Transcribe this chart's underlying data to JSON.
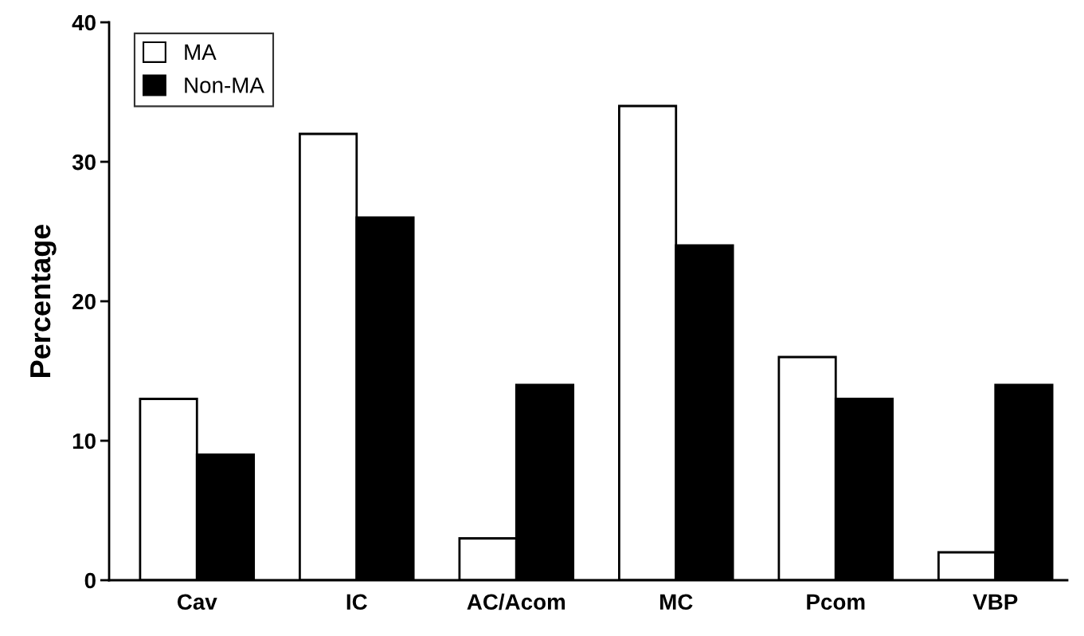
{
  "chart_data": {
    "type": "bar",
    "ylabel": "Percentage",
    "categories": [
      "Cav",
      "IC",
      "AC/Acom",
      "MC",
      "Pcom",
      "VBP"
    ],
    "series": [
      {
        "name": "MA",
        "color": "#ffffff",
        "values": [
          13,
          32,
          3,
          34,
          16,
          2
        ]
      },
      {
        "name": "Non-MA",
        "color": "#000000",
        "values": [
          9,
          26,
          14,
          24,
          13,
          14
        ]
      }
    ],
    "ylim": [
      0,
      40
    ],
    "yticks": [
      0,
      10,
      20,
      30,
      40
    ],
    "grid": false,
    "legend": "top left"
  }
}
